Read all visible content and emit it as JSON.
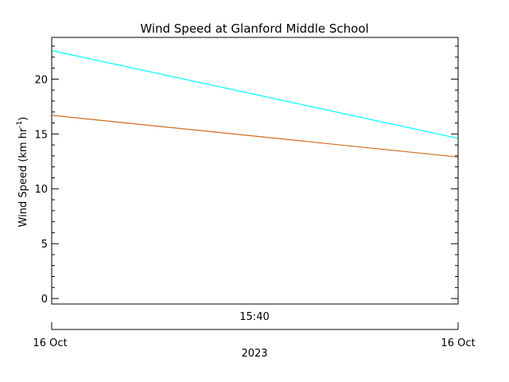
{
  "chart_data": {
    "type": "line",
    "title": "Wind Speed at Glanford Middle School",
    "ylabel_main": "Wind Speed (km hr",
    "ylabel_sup": "-1",
    "ylabel_close": ")",
    "ylim": [
      -0.5,
      23.8
    ],
    "yticks": [
      0,
      5,
      10,
      15,
      20
    ],
    "y_minor_step": 1,
    "grid": false,
    "legend": "none",
    "x_time_label": "15:40",
    "x_start_label": "16 Oct",
    "x_end_label": "16 Oct",
    "x_year_label": "2023",
    "x": [
      0,
      1
    ],
    "series": [
      {
        "color": "#00FFFF",
        "values": [
          22.6,
          14.6
        ]
      },
      {
        "color": "#D2691E",
        "values": [
          16.7,
          12.9
        ]
      }
    ]
  }
}
